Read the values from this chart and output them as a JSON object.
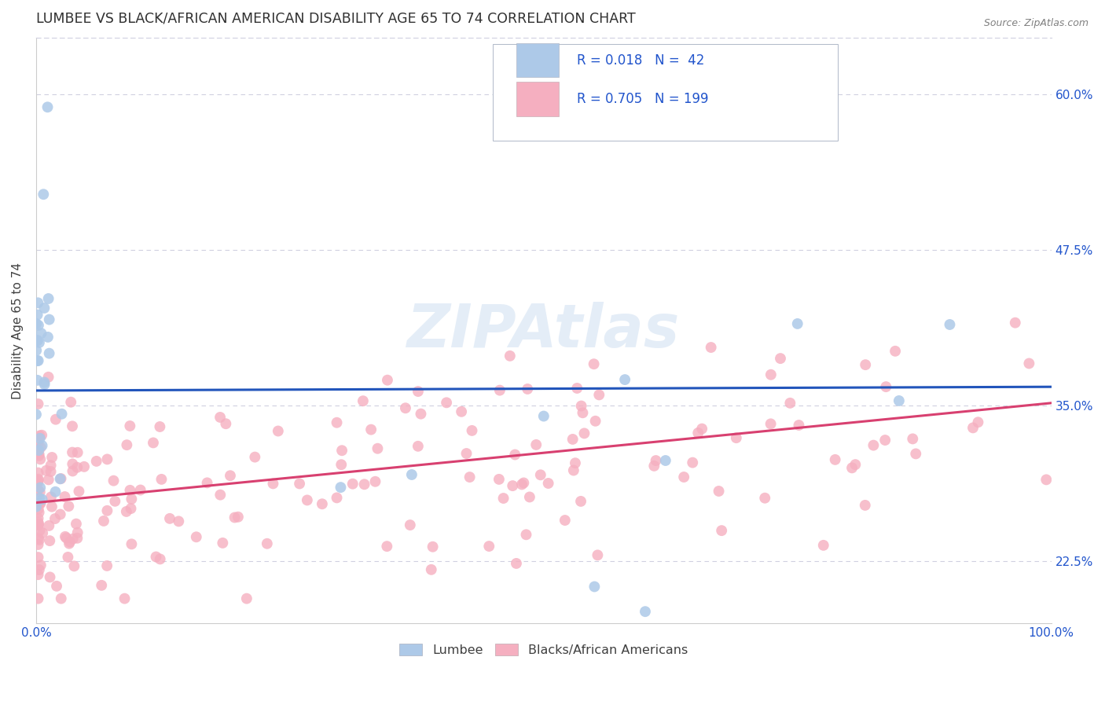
{
  "title": "LUMBEE VS BLACK/AFRICAN AMERICAN DISABILITY AGE 65 TO 74 CORRELATION CHART",
  "source": "Source: ZipAtlas.com",
  "ylabel": "Disability Age 65 to 74",
  "watermark": "ZIPAtlas",
  "xlim": [
    0.0,
    1.0
  ],
  "ylim": [
    0.175,
    0.645
  ],
  "ytick_positions": [
    0.225,
    0.35,
    0.475,
    0.6
  ],
  "ytick_labels": [
    "22.5%",
    "35.0%",
    "47.5%",
    "60.0%"
  ],
  "blue_R": 0.018,
  "blue_N": 42,
  "pink_R": 0.705,
  "pink_N": 199,
  "blue_color": "#adc9e8",
  "pink_color": "#f5afc0",
  "blue_line_color": "#2255bb",
  "pink_line_color": "#d84070",
  "legend_text_color": "#2255cc",
  "title_color": "#303030",
  "grid_color": "#d0d0e0",
  "background_color": "#ffffff",
  "blue_line_y": [
    0.362,
    0.365
  ],
  "pink_line_y": [
    0.272,
    0.352
  ]
}
